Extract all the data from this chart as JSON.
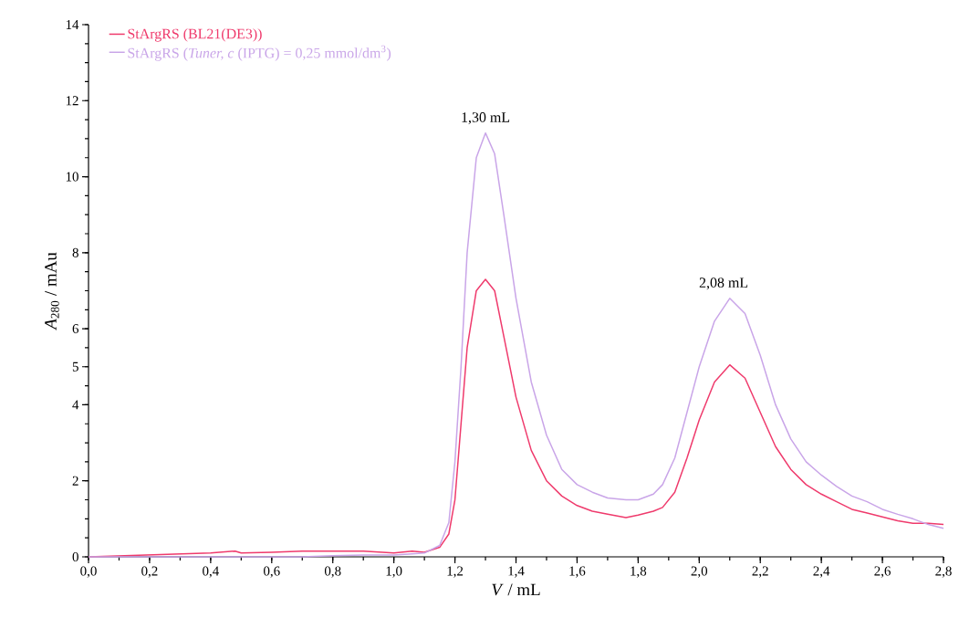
{
  "chart_data": {
    "type": "line",
    "xlabel": "*V* / mL",
    "ylabel": "*A*$_{280}$ / mAu",
    "x": [
      0.0,
      0.2,
      0.4,
      0.48,
      0.5,
      0.6,
      0.7,
      0.8,
      0.9,
      1.0,
      1.06,
      1.1,
      1.15,
      1.18,
      1.2,
      1.22,
      1.24,
      1.27,
      1.3,
      1.33,
      1.36,
      1.4,
      1.45,
      1.5,
      1.55,
      1.6,
      1.65,
      1.7,
      1.76,
      1.8,
      1.85,
      1.88,
      1.92,
      1.96,
      2.0,
      2.05,
      2.1,
      2.15,
      2.2,
      2.25,
      2.3,
      2.35,
      2.4,
      2.45,
      2.5,
      2.55,
      2.6,
      2.65,
      2.7,
      2.75,
      2.8
    ],
    "series": [
      {
        "name": "StArgRS (BL21(DE3))",
        "color": "#ef3a6c",
        "values": [
          0.0,
          0.05,
          0.1,
          0.15,
          0.1,
          0.12,
          0.15,
          0.15,
          0.15,
          0.1,
          0.15,
          0.12,
          0.25,
          0.6,
          1.5,
          3.5,
          5.5,
          7.0,
          7.3,
          7.0,
          5.8,
          4.2,
          2.8,
          2.0,
          1.6,
          1.35,
          1.2,
          1.12,
          1.03,
          1.1,
          1.2,
          1.3,
          1.7,
          2.6,
          3.6,
          4.6,
          5.05,
          4.7,
          3.8,
          2.9,
          2.3,
          1.9,
          1.65,
          1.45,
          1.25,
          1.15,
          1.05,
          0.95,
          0.88,
          0.88,
          0.85
        ]
      },
      {
        "name": "StArgRS (*Tuner, c* (IPTG) = 0,25 mmol/dm$^{3}$)",
        "color": "#c9a5e8",
        "values": [
          0.0,
          0.0,
          0.0,
          0.0,
          0.0,
          0.0,
          0.0,
          0.03,
          0.05,
          0.05,
          0.08,
          0.1,
          0.3,
          0.9,
          2.5,
          5.0,
          8.0,
          10.5,
          11.15,
          10.6,
          9.0,
          6.8,
          4.6,
          3.2,
          2.3,
          1.9,
          1.7,
          1.55,
          1.5,
          1.5,
          1.65,
          1.9,
          2.6,
          3.8,
          5.0,
          6.2,
          6.8,
          6.4,
          5.3,
          4.0,
          3.1,
          2.5,
          2.15,
          1.85,
          1.6,
          1.45,
          1.25,
          1.12,
          1.0,
          0.85,
          0.75
        ]
      }
    ],
    "xlim": [
      0,
      2.8
    ],
    "ylim": [
      0,
      14
    ],
    "xticks": [
      {
        "value": 0,
        "label": "0,0"
      },
      {
        "value": 0.2,
        "label": "0,2"
      },
      {
        "value": 0.4,
        "label": "0,4"
      },
      {
        "value": 0.6,
        "label": "0,6"
      },
      {
        "value": 0.8,
        "label": "0,8"
      },
      {
        "value": 1.0,
        "label": "1,0"
      },
      {
        "value": 1.2,
        "label": "1,2"
      },
      {
        "value": 1.4,
        "label": "1,4"
      },
      {
        "value": 1.6,
        "label": "1,6"
      },
      {
        "value": 1.8,
        "label": "1,8"
      },
      {
        "value": 2.0,
        "label": "2,0"
      },
      {
        "value": 2.2,
        "label": "2,2"
      },
      {
        "value": 2.4,
        "label": "2,4"
      },
      {
        "value": 2.6,
        "label": "2,6"
      },
      {
        "value": 2.8,
        "label": "2,8"
      }
    ],
    "yticks": [
      0,
      2,
      4,
      5,
      6,
      8,
      10,
      12,
      14
    ],
    "annotations": [
      {
        "text": "1,30 mL",
        "x": 1.3,
        "y": 11.15
      },
      {
        "text": "2,08 mL",
        "x": 2.08,
        "y": 6.8
      }
    ],
    "legend": "top left"
  }
}
